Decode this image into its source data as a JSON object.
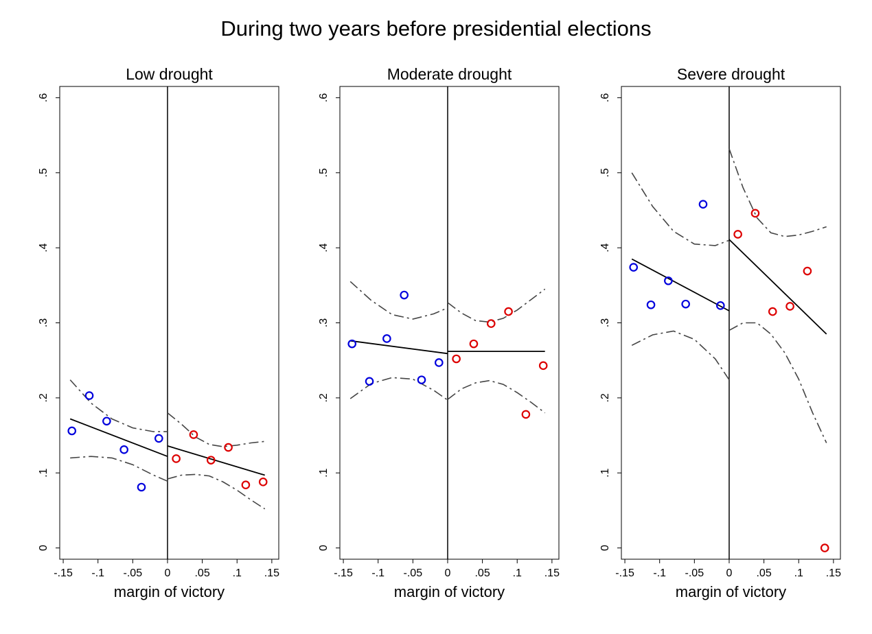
{
  "title": "During two years before presidential elections",
  "colors": {
    "left_points": "#0000dd",
    "right_points": "#dd0000",
    "fit_line": "#000000",
    "ci_line": "#444444",
    "cutoff_line": "#000000"
  },
  "chart_data": [
    {
      "type": "scatter",
      "title": "Low drought",
      "xlabel": "margin of victory",
      "ylabel": "",
      "xlim": [
        -0.155,
        0.16
      ],
      "ylim": [
        -0.015,
        0.615
      ],
      "xticks": [
        "-.15",
        "-.1",
        "-.05",
        "0",
        ".05",
        ".1",
        ".15"
      ],
      "xtick_values": [
        -0.15,
        -0.1,
        -0.05,
        0,
        0.05,
        0.1,
        0.15
      ],
      "yticks": [
        "0",
        ".1",
        ".2",
        ".3",
        ".4",
        ".5",
        ".6"
      ],
      "ytick_values": [
        0,
        0.1,
        0.2,
        0.3,
        0.4,
        0.5,
        0.6
      ],
      "cutoff": 0,
      "left_points": {
        "x": [
          -0.1375,
          -0.1125,
          -0.0875,
          -0.0625,
          -0.0375,
          -0.0125
        ],
        "y": [
          0.156,
          0.203,
          0.169,
          0.131,
          0.081,
          0.146
        ]
      },
      "right_points": {
        "x": [
          0.0125,
          0.0375,
          0.0625,
          0.0875,
          0.1125,
          0.1375
        ],
        "y": [
          0.119,
          0.151,
          0.117,
          0.134,
          0.084,
          0.088
        ]
      },
      "left_fit": {
        "x": [
          -0.14,
          0
        ],
        "y": [
          0.172,
          0.122
        ]
      },
      "right_fit": {
        "x": [
          0,
          0.14
        ],
        "y": [
          0.136,
          0.097
        ]
      },
      "left_ci_upper": {
        "x": [
          -0.14,
          -0.11,
          -0.08,
          -0.05,
          -0.02,
          0
        ],
        "y": [
          0.224,
          0.193,
          0.172,
          0.16,
          0.155,
          0.155
        ]
      },
      "left_ci_lower": {
        "x": [
          -0.14,
          -0.11,
          -0.08,
          -0.05,
          -0.02,
          0
        ],
        "y": [
          0.12,
          0.122,
          0.12,
          0.111,
          0.097,
          0.089
        ]
      },
      "right_ci_upper": {
        "x": [
          0,
          0.02,
          0.04,
          0.06,
          0.08,
          0.1,
          0.12,
          0.14
        ],
        "y": [
          0.18,
          0.165,
          0.148,
          0.138,
          0.135,
          0.137,
          0.14,
          0.142
        ]
      },
      "right_ci_lower": {
        "x": [
          0,
          0.02,
          0.04,
          0.06,
          0.08,
          0.1,
          0.12,
          0.14
        ],
        "y": [
          0.092,
          0.097,
          0.098,
          0.096,
          0.088,
          0.077,
          0.064,
          0.052
        ]
      }
    },
    {
      "type": "scatter",
      "title": "Moderate drought",
      "xlabel": "margin of victory",
      "ylabel": "",
      "xlim": [
        -0.155,
        0.16
      ],
      "ylim": [
        -0.015,
        0.615
      ],
      "xticks": [
        "-.15",
        "-.1",
        "-.05",
        "0",
        ".05",
        ".1",
        ".15"
      ],
      "xtick_values": [
        -0.15,
        -0.1,
        -0.05,
        0,
        0.05,
        0.1,
        0.15
      ],
      "yticks": [
        "0",
        ".1",
        ".2",
        ".3",
        ".4",
        ".5",
        ".6"
      ],
      "ytick_values": [
        0,
        0.1,
        0.2,
        0.3,
        0.4,
        0.5,
        0.6
      ],
      "cutoff": 0,
      "left_points": {
        "x": [
          -0.1375,
          -0.1125,
          -0.0875,
          -0.0625,
          -0.0375,
          -0.0125
        ],
        "y": [
          0.272,
          0.222,
          0.279,
          0.337,
          0.224,
          0.247
        ]
      },
      "right_points": {
        "x": [
          0.0125,
          0.0375,
          0.0625,
          0.0875,
          0.1125,
          0.1375
        ],
        "y": [
          0.252,
          0.272,
          0.299,
          0.315,
          0.178,
          0.243
        ]
      },
      "left_fit": {
        "x": [
          -0.14,
          0
        ],
        "y": [
          0.276,
          0.259
        ]
      },
      "right_fit": {
        "x": [
          0,
          0.14
        ],
        "y": [
          0.262,
          0.262
        ]
      },
      "left_ci_upper": {
        "x": [
          -0.14,
          -0.11,
          -0.08,
          -0.05,
          -0.02,
          0
        ],
        "y": [
          0.355,
          0.33,
          0.311,
          0.305,
          0.312,
          0.32
        ]
      },
      "left_ci_lower": {
        "x": [
          -0.14,
          -0.11,
          -0.08,
          -0.05,
          -0.02,
          0
        ],
        "y": [
          0.199,
          0.219,
          0.227,
          0.225,
          0.21,
          0.197
        ]
      },
      "right_ci_upper": {
        "x": [
          0,
          0.02,
          0.04,
          0.06,
          0.08,
          0.1,
          0.12,
          0.14
        ],
        "y": [
          0.327,
          0.313,
          0.303,
          0.301,
          0.306,
          0.317,
          0.331,
          0.345
        ]
      },
      "right_ci_lower": {
        "x": [
          0,
          0.02,
          0.04,
          0.06,
          0.08,
          0.1,
          0.12,
          0.14
        ],
        "y": [
          0.198,
          0.212,
          0.22,
          0.223,
          0.218,
          0.207,
          0.194,
          0.18
        ]
      }
    },
    {
      "type": "scatter",
      "title": "Severe drought",
      "xlabel": "margin of victory",
      "ylabel": "",
      "xlim": [
        -0.155,
        0.16
      ],
      "ylim": [
        -0.015,
        0.615
      ],
      "xticks": [
        "-.15",
        "-.1",
        "-.05",
        "0",
        ".05",
        ".1",
        ".15"
      ],
      "xtick_values": [
        -0.15,
        -0.1,
        -0.05,
        0,
        0.05,
        0.1,
        0.15
      ],
      "yticks": [
        "0",
        ".1",
        ".2",
        ".3",
        ".4",
        ".5",
        ".6"
      ],
      "ytick_values": [
        0,
        0.1,
        0.2,
        0.3,
        0.4,
        0.5,
        0.6
      ],
      "cutoff": 0,
      "left_points": {
        "x": [
          -0.1375,
          -0.1125,
          -0.0875,
          -0.0625,
          -0.0375,
          -0.0125
        ],
        "y": [
          0.374,
          0.324,
          0.356,
          0.325,
          0.458,
          0.323
        ]
      },
      "right_points": {
        "x": [
          0.0125,
          0.0375,
          0.0625,
          0.0875,
          0.1125,
          0.1375
        ],
        "y": [
          0.418,
          0.446,
          0.315,
          0.322,
          0.369,
          0.0
        ]
      },
      "left_fit": {
        "x": [
          -0.14,
          0
        ],
        "y": [
          0.385,
          0.316
        ]
      },
      "right_fit": {
        "x": [
          0,
          0.14
        ],
        "y": [
          0.411,
          0.285
        ]
      },
      "left_ci_upper": {
        "x": [
          -0.14,
          -0.11,
          -0.08,
          -0.05,
          -0.02,
          0
        ],
        "y": [
          0.5,
          0.455,
          0.422,
          0.405,
          0.403,
          0.41
        ]
      },
      "left_ci_lower": {
        "x": [
          -0.14,
          -0.11,
          -0.08,
          -0.05,
          -0.02,
          0
        ],
        "y": [
          0.27,
          0.284,
          0.289,
          0.278,
          0.252,
          0.224
        ]
      },
      "right_ci_upper": {
        "x": [
          0,
          0.02,
          0.04,
          0.06,
          0.08,
          0.1,
          0.12,
          0.14
        ],
        "y": [
          0.532,
          0.48,
          0.44,
          0.42,
          0.415,
          0.417,
          0.422,
          0.428
        ]
      },
      "right_ci_lower": {
        "x": [
          0,
          0.02,
          0.04,
          0.06,
          0.08,
          0.1,
          0.12,
          0.14
        ],
        "y": [
          0.29,
          0.3,
          0.3,
          0.285,
          0.26,
          0.225,
          0.18,
          0.14
        ]
      }
    }
  ]
}
